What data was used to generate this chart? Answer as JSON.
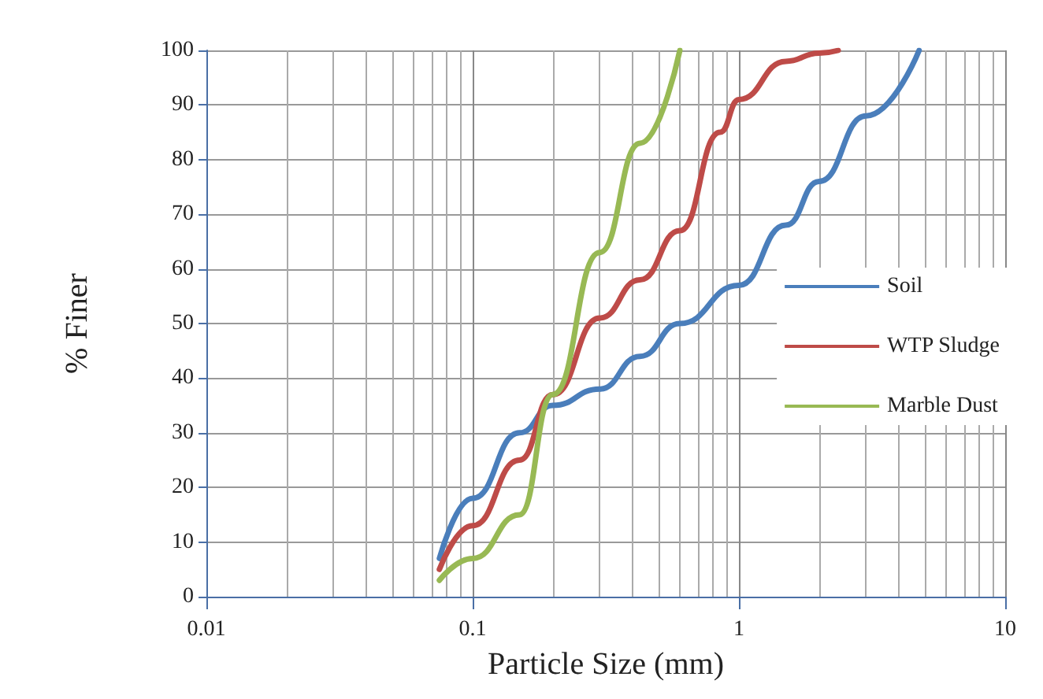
{
  "chart_data": {
    "type": "line",
    "xlabel": "Particle Size (mm)",
    "ylabel": "% Finer",
    "log": "x",
    "xlim": [
      0.01,
      10
    ],
    "xticks": [
      0.01,
      0.1,
      1,
      10
    ],
    "ylim": [
      0,
      100
    ],
    "yticks": [
      0,
      10,
      20,
      30,
      40,
      50,
      60,
      70,
      80,
      90,
      100
    ],
    "grid": true,
    "legend": "right",
    "marker": "none",
    "line_style": "solid",
    "series": [
      {
        "name": "Soil",
        "color": "#4a7ebb",
        "x": [
          0.075,
          0.1,
          0.15,
          0.2,
          0.3,
          0.425,
          0.6,
          1,
          1.5,
          2,
          3,
          4.75
        ],
        "values": [
          7,
          18,
          30,
          35,
          38,
          44,
          50,
          57,
          68,
          76,
          88,
          100
        ]
      },
      {
        "name": "WTP Sludge",
        "color": "#be4b48",
        "x": [
          0.075,
          0.1,
          0.15,
          0.2,
          0.3,
          0.425,
          0.6,
          0.85,
          1,
          1.5,
          2,
          2.36
        ],
        "values": [
          5,
          13,
          25,
          37,
          51,
          58,
          67,
          85,
          91,
          98,
          99.5,
          100
        ]
      },
      {
        "name": "Marble Dust",
        "color": "#98b954",
        "x": [
          0.075,
          0.1,
          0.15,
          0.2,
          0.3,
          0.425,
          0.6
        ],
        "values": [
          3,
          7,
          15,
          37,
          63,
          83,
          100
        ]
      }
    ]
  }
}
